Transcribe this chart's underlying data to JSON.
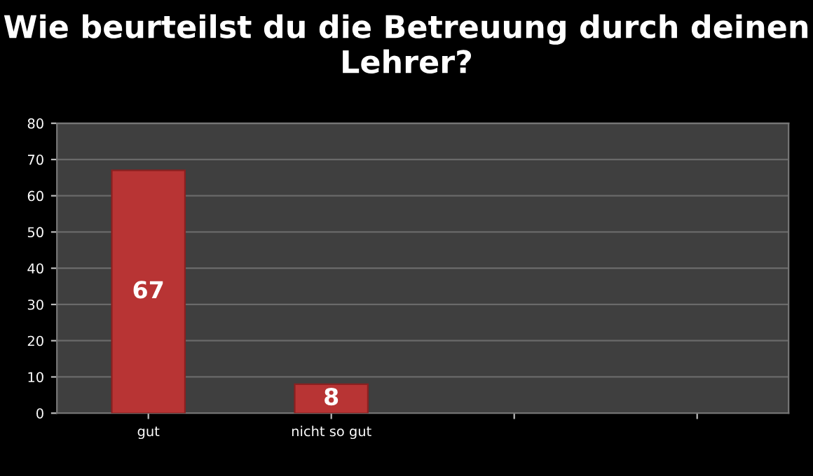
{
  "chart_data": {
    "type": "bar",
    "title": "Wie beurteilst du die Betreuung durch deinen Lehrer?",
    "categories": [
      "gut",
      "nicht so gut",
      null,
      null
    ],
    "values": [
      67,
      8,
      null,
      null
    ],
    "color": "#b83434",
    "ylim": [
      0,
      80
    ],
    "yticks": [
      0,
      10,
      20,
      30,
      40,
      50,
      60,
      70,
      80
    ],
    "grid": "y",
    "data_labels": true,
    "legend": false
  }
}
